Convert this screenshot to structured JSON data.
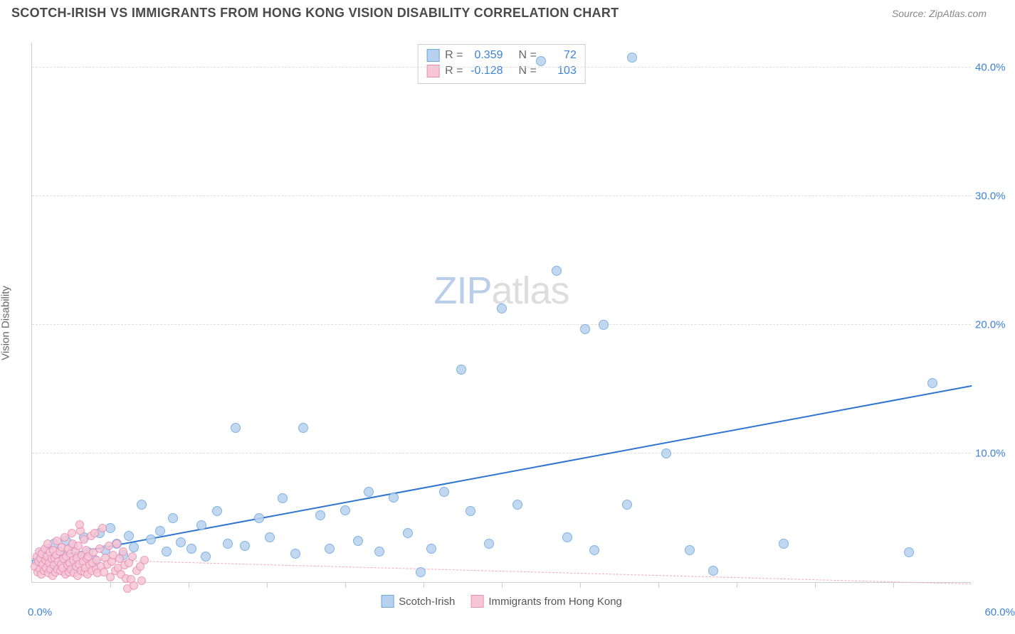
{
  "header": {
    "title": "SCOTCH-IRISH VS IMMIGRANTS FROM HONG KONG VISION DISABILITY CORRELATION CHART",
    "source": "Source: ZipAtlas.com"
  },
  "watermark": {
    "part1": "ZIP",
    "part2": "atlas"
  },
  "chart": {
    "type": "scatter",
    "ylabel": "Vision Disability",
    "xlim": [
      0,
      60
    ],
    "ylim": [
      0,
      42
    ],
    "x_start_label": "0.0%",
    "x_end_label": "60.0%",
    "x_tick_positions_pct": [
      8.3,
      16.7,
      25,
      33.3,
      41.7,
      50,
      58.3,
      66.7,
      75,
      83.3,
      91.7
    ],
    "y_gridlines": [
      {
        "value": 10,
        "label": "10.0%"
      },
      {
        "value": 20,
        "label": "20.0%"
      },
      {
        "value": 30,
        "label": "30.0%"
      },
      {
        "value": 40,
        "label": "40.0%"
      }
    ],
    "background_color": "#ffffff",
    "grid_color": "#dddddd",
    "border_color": "#cccccc"
  },
  "series": {
    "blue": {
      "name": "Scotch-Irish",
      "color_fill": "#b7d2ee",
      "color_stroke": "#6ca6dd",
      "label_color": "#3b82d9",
      "marker_radius": 7,
      "R_label": "R =",
      "R_value": "0.359",
      "N_label": "N =",
      "N_value": "72",
      "trend": {
        "y_at_x0": 1.6,
        "y_at_x60": 15.2,
        "stroke": "#2f74d0",
        "width": 2.5,
        "dash": "none"
      },
      "points": [
        [
          0.3,
          1.6
        ],
        [
          0.6,
          2.2
        ],
        [
          0.8,
          1.0
        ],
        [
          1.0,
          2.6
        ],
        [
          1.2,
          1.3
        ],
        [
          1.4,
          3.0
        ],
        [
          1.6,
          1.8
        ],
        [
          1.8,
          2.4
        ],
        [
          2.0,
          0.9
        ],
        [
          2.2,
          3.2
        ],
        [
          2.4,
          1.5
        ],
        [
          2.6,
          2.8
        ],
        [
          2.8,
          1.1
        ],
        [
          3.0,
          2.0
        ],
        [
          3.3,
          3.5
        ],
        [
          3.6,
          2.3
        ],
        [
          4.0,
          1.7
        ],
        [
          4.3,
          3.8
        ],
        [
          4.7,
          2.5
        ],
        [
          5.0,
          4.2
        ],
        [
          5.4,
          3.0
        ],
        [
          5.8,
          2.1
        ],
        [
          6.2,
          3.6
        ],
        [
          6.5,
          2.7
        ],
        [
          7.0,
          6.0
        ],
        [
          7.6,
          3.3
        ],
        [
          8.2,
          4.0
        ],
        [
          8.6,
          2.4
        ],
        [
          9.0,
          5.0
        ],
        [
          9.5,
          3.1
        ],
        [
          10.2,
          2.6
        ],
        [
          10.8,
          4.4
        ],
        [
          11.1,
          2.0
        ],
        [
          11.8,
          5.5
        ],
        [
          12.5,
          3.0
        ],
        [
          13.0,
          12.0
        ],
        [
          13.6,
          2.8
        ],
        [
          14.5,
          5.0
        ],
        [
          15.2,
          3.5
        ],
        [
          16.0,
          6.5
        ],
        [
          16.8,
          2.2
        ],
        [
          17.3,
          12.0
        ],
        [
          18.4,
          5.2
        ],
        [
          19.0,
          2.6
        ],
        [
          20.0,
          5.6
        ],
        [
          20.8,
          3.2
        ],
        [
          21.5,
          7.0
        ],
        [
          22.2,
          2.4
        ],
        [
          23.1,
          6.6
        ],
        [
          24.0,
          3.8
        ],
        [
          24.8,
          0.8
        ],
        [
          25.5,
          2.6
        ],
        [
          26.3,
          7.0
        ],
        [
          27.4,
          16.5
        ],
        [
          28.0,
          5.5
        ],
        [
          29.2,
          3.0
        ],
        [
          30.0,
          21.3
        ],
        [
          31.0,
          6.0
        ],
        [
          32.5,
          40.5
        ],
        [
          33.5,
          24.2
        ],
        [
          34.2,
          3.5
        ],
        [
          35.3,
          19.7
        ],
        [
          35.9,
          2.5
        ],
        [
          36.5,
          20.0
        ],
        [
          38.0,
          6.0
        ],
        [
          38.3,
          40.8
        ],
        [
          40.5,
          10.0
        ],
        [
          42.0,
          2.5
        ],
        [
          43.5,
          0.9
        ],
        [
          48.0,
          3.0
        ],
        [
          56.0,
          2.3
        ],
        [
          57.5,
          15.5
        ]
      ]
    },
    "pink": {
      "name": "Immigrants from Hong Kong",
      "color_fill": "#f6c6d6",
      "color_stroke": "#e88fb0",
      "label_color": "#e86aa0",
      "marker_radius": 6,
      "R_label": "R =",
      "R_value": "-0.128",
      "N_label": "N =",
      "N_value": "103",
      "trend": {
        "y_at_x0": 1.8,
        "y_at_x60": -0.2,
        "stroke": "#f0a8c0",
        "width": 1.5,
        "dash": "6,6"
      },
      "points": [
        [
          0.2,
          1.2
        ],
        [
          0.3,
          2.0
        ],
        [
          0.35,
          0.8
        ],
        [
          0.4,
          1.6
        ],
        [
          0.45,
          2.4
        ],
        [
          0.5,
          1.0
        ],
        [
          0.55,
          1.8
        ],
        [
          0.6,
          0.6
        ],
        [
          0.65,
          2.2
        ],
        [
          0.7,
          1.4
        ],
        [
          0.75,
          0.9
        ],
        [
          0.8,
          2.6
        ],
        [
          0.85,
          1.7
        ],
        [
          0.9,
          1.1
        ],
        [
          0.95,
          2.0
        ],
        [
          1.0,
          3.0
        ],
        [
          1.05,
          0.7
        ],
        [
          1.1,
          1.5
        ],
        [
          1.15,
          2.3
        ],
        [
          1.2,
          1.0
        ],
        [
          1.25,
          1.8
        ],
        [
          1.3,
          0.5
        ],
        [
          1.35,
          2.5
        ],
        [
          1.4,
          1.3
        ],
        [
          1.45,
          1.9
        ],
        [
          1.5,
          0.8
        ],
        [
          1.55,
          2.1
        ],
        [
          1.6,
          3.2
        ],
        [
          1.65,
          1.0
        ],
        [
          1.7,
          1.6
        ],
        [
          1.75,
          2.4
        ],
        [
          1.8,
          0.9
        ],
        [
          1.85,
          1.4
        ],
        [
          1.9,
          2.7
        ],
        [
          1.95,
          1.1
        ],
        [
          2.0,
          1.8
        ],
        [
          2.1,
          3.5
        ],
        [
          2.15,
          0.6
        ],
        [
          2.2,
          2.0
        ],
        [
          2.25,
          1.3
        ],
        [
          2.3,
          2.6
        ],
        [
          2.35,
          0.8
        ],
        [
          2.4,
          1.5
        ],
        [
          2.45,
          2.2
        ],
        [
          2.5,
          1.0
        ],
        [
          2.6,
          3.0
        ],
        [
          2.65,
          1.7
        ],
        [
          2.7,
          0.7
        ],
        [
          2.75,
          2.4
        ],
        [
          2.8,
          1.2
        ],
        [
          2.85,
          1.9
        ],
        [
          2.9,
          0.5
        ],
        [
          2.95,
          2.8
        ],
        [
          3.0,
          1.4
        ],
        [
          3.1,
          4.0
        ],
        [
          3.15,
          0.9
        ],
        [
          3.2,
          2.1
        ],
        [
          3.25,
          1.6
        ],
        [
          3.3,
          3.3
        ],
        [
          3.35,
          0.8
        ],
        [
          3.4,
          1.1
        ],
        [
          3.45,
          2.5
        ],
        [
          3.5,
          1.8
        ],
        [
          3.55,
          0.6
        ],
        [
          3.6,
          2.0
        ],
        [
          3.7,
          1.3
        ],
        [
          3.75,
          3.6
        ],
        [
          3.8,
          0.9
        ],
        [
          3.85,
          1.5
        ],
        [
          3.9,
          2.3
        ],
        [
          4.0,
          3.8
        ],
        [
          4.1,
          1.0
        ],
        [
          4.15,
          1.7
        ],
        [
          4.2,
          0.7
        ],
        [
          4.3,
          2.6
        ],
        [
          4.4,
          1.2
        ],
        [
          4.5,
          4.2
        ],
        [
          4.6,
          0.8
        ],
        [
          4.7,
          1.9
        ],
        [
          4.8,
          1.4
        ],
        [
          4.9,
          2.8
        ],
        [
          5.0,
          0.4
        ],
        [
          5.1,
          1.6
        ],
        [
          5.2,
          2.1
        ],
        [
          5.3,
          0.9
        ],
        [
          5.4,
          3.0
        ],
        [
          5.5,
          1.1
        ],
        [
          5.6,
          1.8
        ],
        [
          5.7,
          0.6
        ],
        [
          5.8,
          2.4
        ],
        [
          5.9,
          1.3
        ],
        [
          6.0,
          0.3
        ],
        [
          6.1,
          -0.5
        ],
        [
          6.2,
          1.5
        ],
        [
          6.3,
          0.2
        ],
        [
          6.4,
          2.0
        ],
        [
          6.5,
          -0.3
        ],
        [
          6.7,
          0.9
        ],
        [
          6.9,
          1.2
        ],
        [
          7.0,
          0.1
        ],
        [
          7.2,
          1.7
        ],
        [
          3.05,
          4.5
        ],
        [
          2.55,
          3.8
        ]
      ]
    }
  },
  "legend": {
    "item1": "Scotch-Irish",
    "item2": "Immigrants from Hong Kong"
  }
}
